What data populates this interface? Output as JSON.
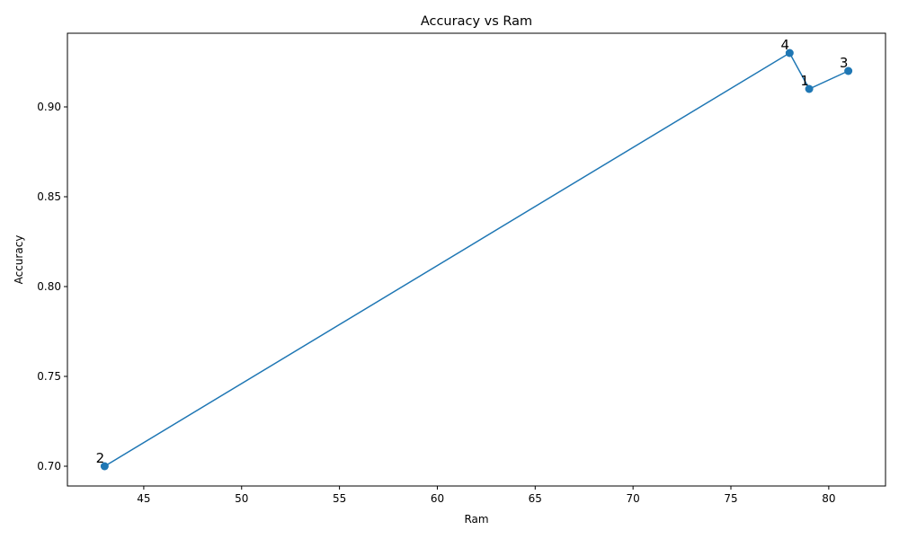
{
  "chart_data": {
    "type": "line",
    "title": "Accuracy vs Ram",
    "xlabel": "Ram",
    "ylabel": "Accuracy",
    "xlim": [
      41.1,
      82.9
    ],
    "ylim": [
      0.689,
      0.941
    ],
    "x_ticks": [
      45,
      50,
      55,
      60,
      65,
      70,
      75,
      80
    ],
    "x_tick_labels": [
      "45",
      "50",
      "55",
      "60",
      "65",
      "70",
      "75",
      "80"
    ],
    "y_ticks": [
      0.7,
      0.75,
      0.8,
      0.85,
      0.9
    ],
    "y_tick_labels": [
      "0.70",
      "0.75",
      "0.80",
      "0.85",
      "0.90"
    ],
    "grid": false,
    "color": "#1f77b4",
    "marker": "circle",
    "points": [
      {
        "x": 43,
        "y": 0.7,
        "label": "2"
      },
      {
        "x": 78,
        "y": 0.93,
        "label": "4"
      },
      {
        "x": 79,
        "y": 0.91,
        "label": "1"
      },
      {
        "x": 81,
        "y": 0.92,
        "label": "3"
      }
    ]
  }
}
